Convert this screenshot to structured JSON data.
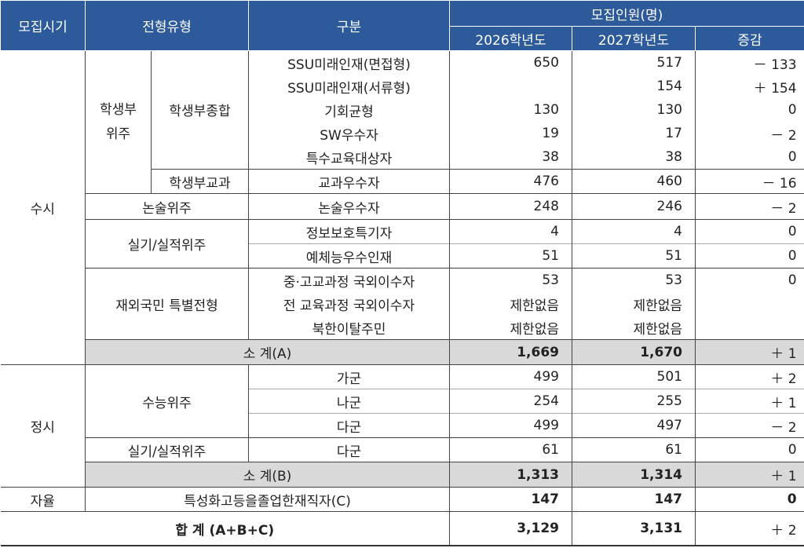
{
  "header": {
    "period": "모집시기",
    "type": "전형유형",
    "category": "구분",
    "quota": "모집인원(명)",
    "year2026": "2026학년도",
    "year2027": "2027학년도",
    "change": "증감"
  },
  "susi": {
    "label": "수시",
    "hakseng_label": "학생부\n위주",
    "jonghap_label": "학생부종합",
    "rows_jonghap": [
      {
        "name": "SSU미래인재(면접형)",
        "y2026": "650",
        "y2027": "517",
        "change": "－ 133"
      },
      {
        "name": "SSU미래인재(서류형)",
        "y2026": "",
        "y2027": "154",
        "change": "＋ 154"
      },
      {
        "name": "기회균형",
        "y2026": "130",
        "y2027": "130",
        "change": "0"
      },
      {
        "name": "SW우수자",
        "y2026": "19",
        "y2027": "17",
        "change": "－ 2"
      },
      {
        "name": "특수교육대상자",
        "y2026": "38",
        "y2027": "38",
        "change": "0"
      }
    ],
    "gyogwa_label": "학생부교과",
    "gyogwa_row": {
      "name": "교과우수자",
      "y2026": "476",
      "y2027": "460",
      "change": "－ 16"
    },
    "nonsul_label": "논술위주",
    "nonsul_row": {
      "name": "논술우수자",
      "y2026": "248",
      "y2027": "246",
      "change": "－ 2"
    },
    "silgi_label": "실기/실적위주",
    "silgi_rows": [
      {
        "name": "정보보호특기자",
        "y2026": "4",
        "y2027": "4",
        "change": "0"
      },
      {
        "name": "예체능우수인재",
        "y2026": "51",
        "y2027": "51",
        "change": "0"
      }
    ],
    "jaeoe_label": "재외국민 특별전형",
    "jaeoe_rows": [
      {
        "name": "중·고교과정 국외이수자",
        "y2026": "53",
        "y2027": "53",
        "change": "0"
      },
      {
        "name": "전 교육과정 국외이수자",
        "y2026": "제한없음",
        "y2027": "제한없음",
        "change": ""
      },
      {
        "name": "북한이탈주민",
        "y2026": "제한없음",
        "y2027": "제한없음",
        "change": ""
      }
    ],
    "subtotal": {
      "label": "소 계(A)",
      "y2026": "1,669",
      "y2027": "1,670",
      "change": "＋ 1"
    }
  },
  "jeongsi": {
    "label": "정시",
    "suneung_label": "수능위주",
    "suneung_rows": [
      {
        "name": "가군",
        "y2026": "499",
        "y2027": "501",
        "change": "＋ 2"
      },
      {
        "name": "나군",
        "y2026": "254",
        "y2027": "255",
        "change": "＋ 1"
      },
      {
        "name": "다군",
        "y2026": "499",
        "y2027": "497",
        "change": "－ 2"
      }
    ],
    "silgi_label": "실기/실적위주",
    "silgi_row": {
      "name": "다군",
      "y2026": "61",
      "y2027": "61",
      "change": "0"
    },
    "subtotal": {
      "label": "소 계(B)",
      "y2026": "1,313",
      "y2027": "1,314",
      "change": "＋ 1"
    }
  },
  "jayul": {
    "label": "자율",
    "name": "특성화고등을졸업한재직자(C)",
    "y2026": "147",
    "y2027": "147",
    "change": "0"
  },
  "total": {
    "label": "합 계 (A+B+C)",
    "y2026": "3,129",
    "y2027": "3,131",
    "change": "＋ 2"
  }
}
